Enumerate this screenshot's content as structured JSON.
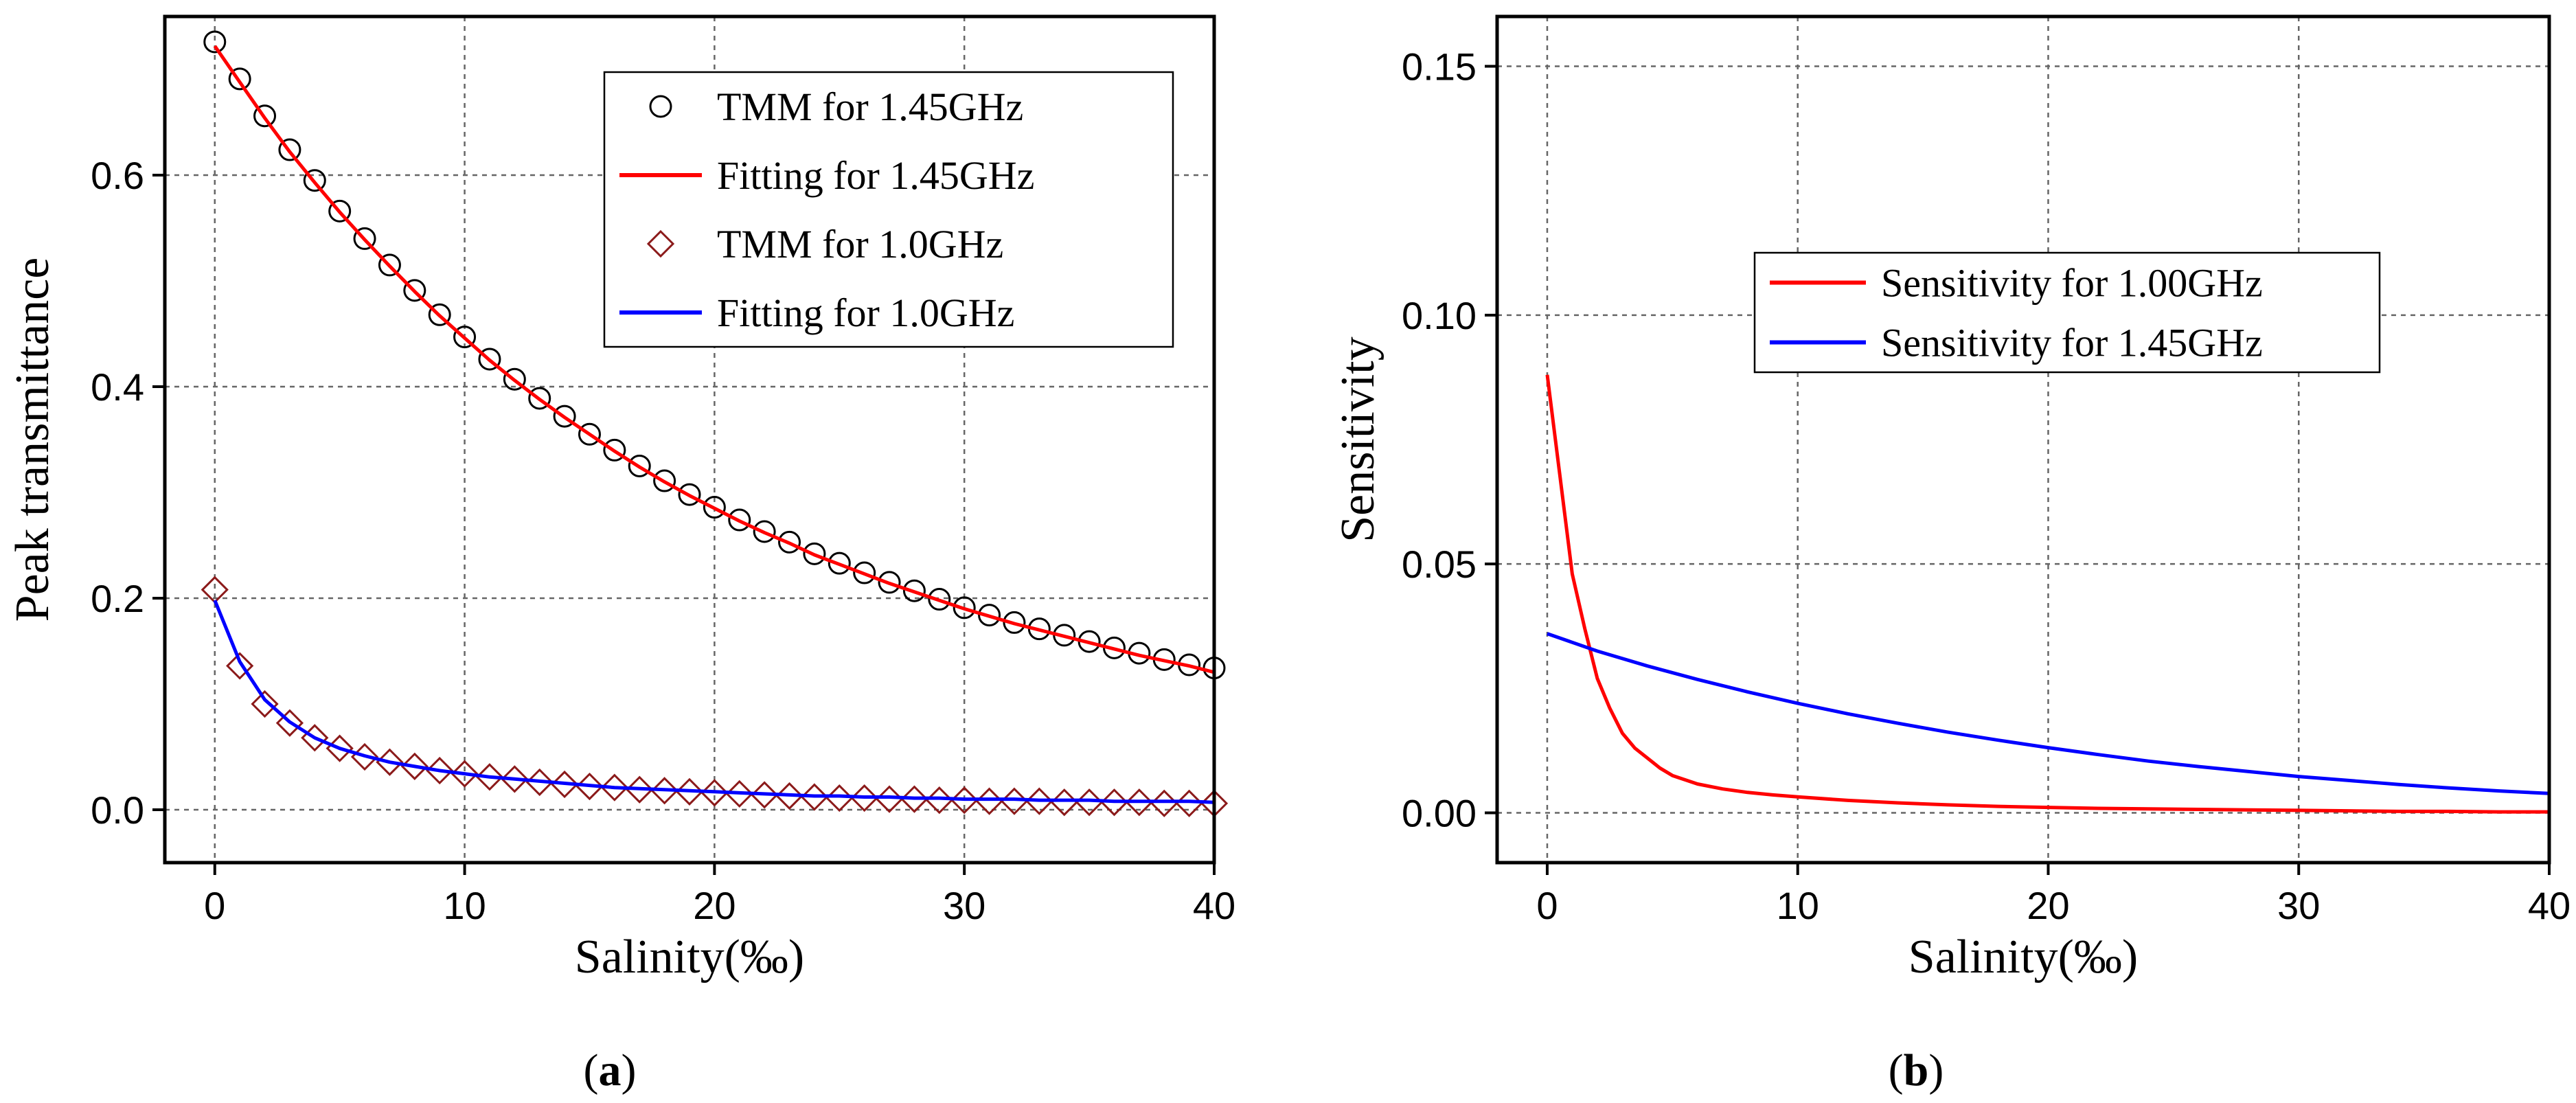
{
  "captions": {
    "a_open": "(",
    "a_letter": "a",
    "a_close": ")",
    "b_open": "(",
    "b_letter": "b",
    "b_close": ")"
  },
  "chart_data": [
    {
      "type": "line",
      "panel": "a",
      "title": "",
      "xlabel": "Salinity(‰)",
      "ylabel": "Peak transmittance",
      "xlim": [
        -2,
        40
      ],
      "ylim": [
        -0.05,
        0.75
      ],
      "xticks": [
        0,
        10,
        20,
        30,
        40
      ],
      "yticks": [
        0.0,
        0.2,
        0.4,
        0.6
      ],
      "xtick_labels": [
        "0",
        "10",
        "20",
        "30",
        "40"
      ],
      "ytick_labels": [
        "0.0",
        "0.2",
        "0.4",
        "0.6"
      ],
      "grid": true,
      "legend_position": "top-right",
      "series": [
        {
          "name": "TMM for 1.45GHz",
          "kind": "marker",
          "marker": "circle",
          "color": "#000000",
          "x": [
            0,
            1,
            2,
            3,
            4,
            5,
            6,
            7,
            8,
            9,
            10,
            11,
            12,
            13,
            14,
            15,
            16,
            17,
            18,
            19,
            20,
            21,
            22,
            23,
            24,
            25,
            26,
            27,
            28,
            29,
            30,
            31,
            32,
            33,
            34,
            35,
            36,
            37,
            38,
            39,
            40
          ],
          "y": [
            0.726,
            0.691,
            0.656,
            0.624,
            0.595,
            0.566,
            0.54,
            0.515,
            0.491,
            0.468,
            0.447,
            0.426,
            0.407,
            0.389,
            0.372,
            0.355,
            0.34,
            0.325,
            0.311,
            0.298,
            0.286,
            0.274,
            0.263,
            0.253,
            0.242,
            0.233,
            0.224,
            0.215,
            0.207,
            0.199,
            0.191,
            0.184,
            0.177,
            0.171,
            0.165,
            0.159,
            0.153,
            0.148,
            0.142,
            0.137,
            0.134
          ]
        },
        {
          "name": "Fitting for 1.45GHz",
          "kind": "line",
          "color": "#ff0000",
          "x": [
            0,
            1,
            2,
            3,
            4,
            5,
            6,
            7,
            8,
            9,
            10,
            11,
            12,
            13,
            14,
            15,
            16,
            17,
            18,
            19,
            20,
            21,
            22,
            23,
            24,
            25,
            26,
            27,
            28,
            29,
            30,
            31,
            32,
            33,
            34,
            35,
            36,
            37,
            38,
            39,
            40
          ],
          "y": [
            0.722,
            0.688,
            0.654,
            0.622,
            0.593,
            0.565,
            0.539,
            0.514,
            0.49,
            0.467,
            0.446,
            0.425,
            0.406,
            0.388,
            0.371,
            0.355,
            0.339,
            0.324,
            0.31,
            0.297,
            0.285,
            0.273,
            0.262,
            0.252,
            0.241,
            0.232,
            0.223,
            0.214,
            0.206,
            0.198,
            0.19,
            0.183,
            0.176,
            0.17,
            0.164,
            0.158,
            0.152,
            0.146,
            0.141,
            0.136,
            0.13
          ]
        },
        {
          "name": "TMM for 1.0GHz",
          "kind": "marker",
          "marker": "diamond",
          "color": "#8b1a1a",
          "x": [
            0,
            1,
            2,
            3,
            4,
            5,
            6,
            7,
            8,
            9,
            10,
            11,
            12,
            13,
            14,
            15,
            16,
            17,
            18,
            19,
            20,
            21,
            22,
            23,
            24,
            25,
            26,
            27,
            28,
            29,
            30,
            31,
            32,
            33,
            34,
            35,
            36,
            37,
            38,
            39,
            40
          ],
          "y": [
            0.208,
            0.136,
            0.1,
            0.082,
            0.068,
            0.058,
            0.05,
            0.045,
            0.041,
            0.037,
            0.034,
            0.031,
            0.029,
            0.026,
            0.024,
            0.022,
            0.021,
            0.019,
            0.018,
            0.017,
            0.016,
            0.015,
            0.014,
            0.013,
            0.012,
            0.011,
            0.011,
            0.01,
            0.01,
            0.009,
            0.009,
            0.008,
            0.008,
            0.008,
            0.007,
            0.007,
            0.007,
            0.007,
            0.006,
            0.006,
            0.006
          ]
        },
        {
          "name": "Fitting for 1.0GHz",
          "kind": "line",
          "color": "#0000ff",
          "x": [
            0,
            1,
            2,
            3,
            4,
            5,
            6,
            7,
            8,
            9,
            10,
            11,
            12,
            13,
            14,
            15,
            16,
            17,
            18,
            19,
            20,
            21,
            22,
            23,
            24,
            25,
            26,
            27,
            28,
            29,
            30,
            31,
            32,
            33,
            34,
            35,
            36,
            37,
            38,
            39,
            40
          ],
          "y": [
            0.198,
            0.14,
            0.104,
            0.083,
            0.068,
            0.058,
            0.051,
            0.045,
            0.041,
            0.037,
            0.034,
            0.031,
            0.029,
            0.027,
            0.025,
            0.023,
            0.021,
            0.02,
            0.019,
            0.018,
            0.017,
            0.016,
            0.015,
            0.014,
            0.013,
            0.013,
            0.012,
            0.012,
            0.011,
            0.011,
            0.01,
            0.01,
            0.01,
            0.009,
            0.009,
            0.009,
            0.008,
            0.008,
            0.008,
            0.008,
            0.007
          ]
        }
      ]
    },
    {
      "type": "line",
      "panel": "b",
      "title": "",
      "xlabel": "Salinity(‰)",
      "ylabel": "Sensitivity",
      "xlim": [
        -2,
        40
      ],
      "ylim": [
        -0.01,
        0.16
      ],
      "xticks": [
        0,
        10,
        20,
        30,
        40
      ],
      "yticks": [
        0.0,
        0.05,
        0.1,
        0.15
      ],
      "xtick_labels": [
        "0",
        "10",
        "20",
        "30",
        "40"
      ],
      "ytick_labels": [
        "0.00",
        "0.05",
        "0.10",
        "0.15"
      ],
      "grid": true,
      "legend_position": "center",
      "series": [
        {
          "name": "Sensitivity for 1.00GHz",
          "kind": "line",
          "color": "#ff0000",
          "x": [
            0,
            0.5,
            1,
            1.5,
            2,
            2.5,
            3,
            3.5,
            4,
            4.5,
            5,
            6,
            7,
            8,
            9,
            10,
            12,
            14,
            16,
            18,
            20,
            22,
            24,
            26,
            28,
            30,
            32,
            34,
            36,
            38,
            40
          ],
          "y": [
            0.088,
            0.068,
            0.048,
            0.037,
            0.027,
            0.021,
            0.016,
            0.013,
            0.011,
            0.009,
            0.0075,
            0.0058,
            0.0048,
            0.0041,
            0.0036,
            0.0032,
            0.0025,
            0.002,
            0.0016,
            0.0013,
            0.0011,
            0.0009,
            0.0008,
            0.0007,
            0.0006,
            0.0005,
            0.0004,
            0.0003,
            0.0003,
            0.0002,
            0.0002
          ]
        },
        {
          "name": "Sensitivity for 1.45GHz",
          "kind": "line",
          "color": "#0000ff",
          "x": [
            0,
            2,
            4,
            6,
            8,
            10,
            12,
            14,
            16,
            18,
            20,
            22,
            24,
            26,
            28,
            30,
            32,
            34,
            36,
            38,
            40
          ],
          "y": [
            0.036,
            0.0325,
            0.0295,
            0.0268,
            0.0243,
            0.022,
            0.0199,
            0.018,
            0.0162,
            0.0146,
            0.0131,
            0.0117,
            0.0104,
            0.0093,
            0.0083,
            0.0073,
            0.0065,
            0.0057,
            0.005,
            0.0044,
            0.0039
          ]
        }
      ]
    }
  ]
}
